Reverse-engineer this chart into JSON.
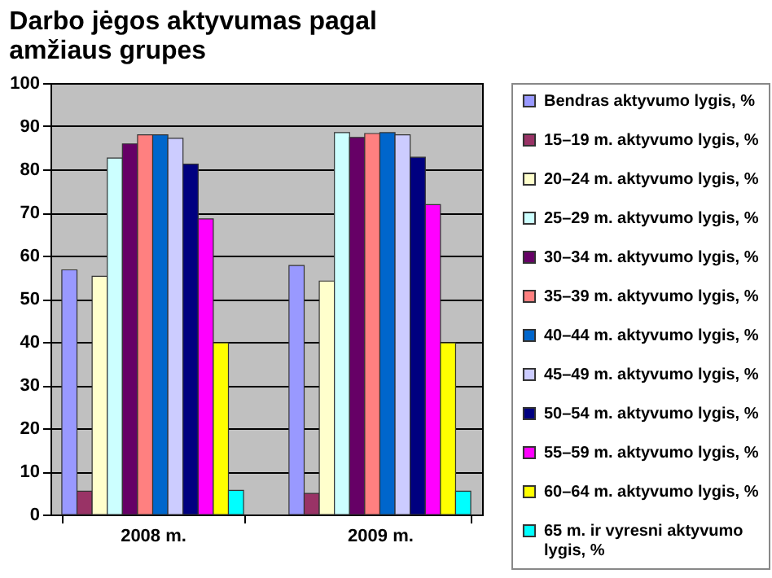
{
  "chart_data": {
    "type": "bar",
    "title": "Darbo jėgos aktyvumas pagal amžiaus grupes",
    "categories": [
      "2008 m.",
      "2009 m."
    ],
    "series": [
      {
        "name": "Bendras aktyvumo lygis, %",
        "color": "#9999ff",
        "values": [
          56.7,
          57.7
        ]
      },
      {
        "name": "15–19 m. aktyvumo lygis, %",
        "color": "#993366",
        "values": [
          5.4,
          4.9
        ]
      },
      {
        "name": "20–24 m. aktyvumo lygis, %",
        "color": "#ffffcc",
        "values": [
          55.2,
          54.1
        ]
      },
      {
        "name": "25–29 m. aktyvumo lygis, %",
        "color": "#ccffff",
        "values": [
          82.6,
          88.5
        ]
      },
      {
        "name": "30–34 m. aktyvumo lygis, %",
        "color": "#660066",
        "values": [
          85.9,
          87.4
        ]
      },
      {
        "name": "35–39 m. aktyvumo lygis, %",
        "color": "#ff8080",
        "values": [
          88.0,
          88.3
        ]
      },
      {
        "name": "40–44 m. aktyvumo lygis, %",
        "color": "#0066cc",
        "values": [
          88.0,
          88.5
        ]
      },
      {
        "name": "45–49 m. aktyvumo lygis, %",
        "color": "#ccccff",
        "values": [
          87.2,
          88.0
        ]
      },
      {
        "name": "50–54 m. aktyvumo lygis, %",
        "color": "#000080",
        "values": [
          81.2,
          82.8
        ]
      },
      {
        "name": "55–59 m. aktyvumo lygis, %",
        "color": "#ff00ff",
        "values": [
          68.5,
          71.8
        ]
      },
      {
        "name": "60–64 m. aktyvumo lygis, %",
        "color": "#ffff00",
        "values": [
          39.8,
          39.8
        ]
      },
      {
        "name": "65 m. ir vyresni aktyvumo lygis, %",
        "color": "#00ffff",
        "values": [
          5.6,
          5.4
        ]
      }
    ],
    "ylim": [
      0,
      100
    ],
    "yticks": [
      0,
      10,
      20,
      30,
      40,
      50,
      60,
      70,
      80,
      90,
      100
    ],
    "grid": "y",
    "legend": "right"
  }
}
